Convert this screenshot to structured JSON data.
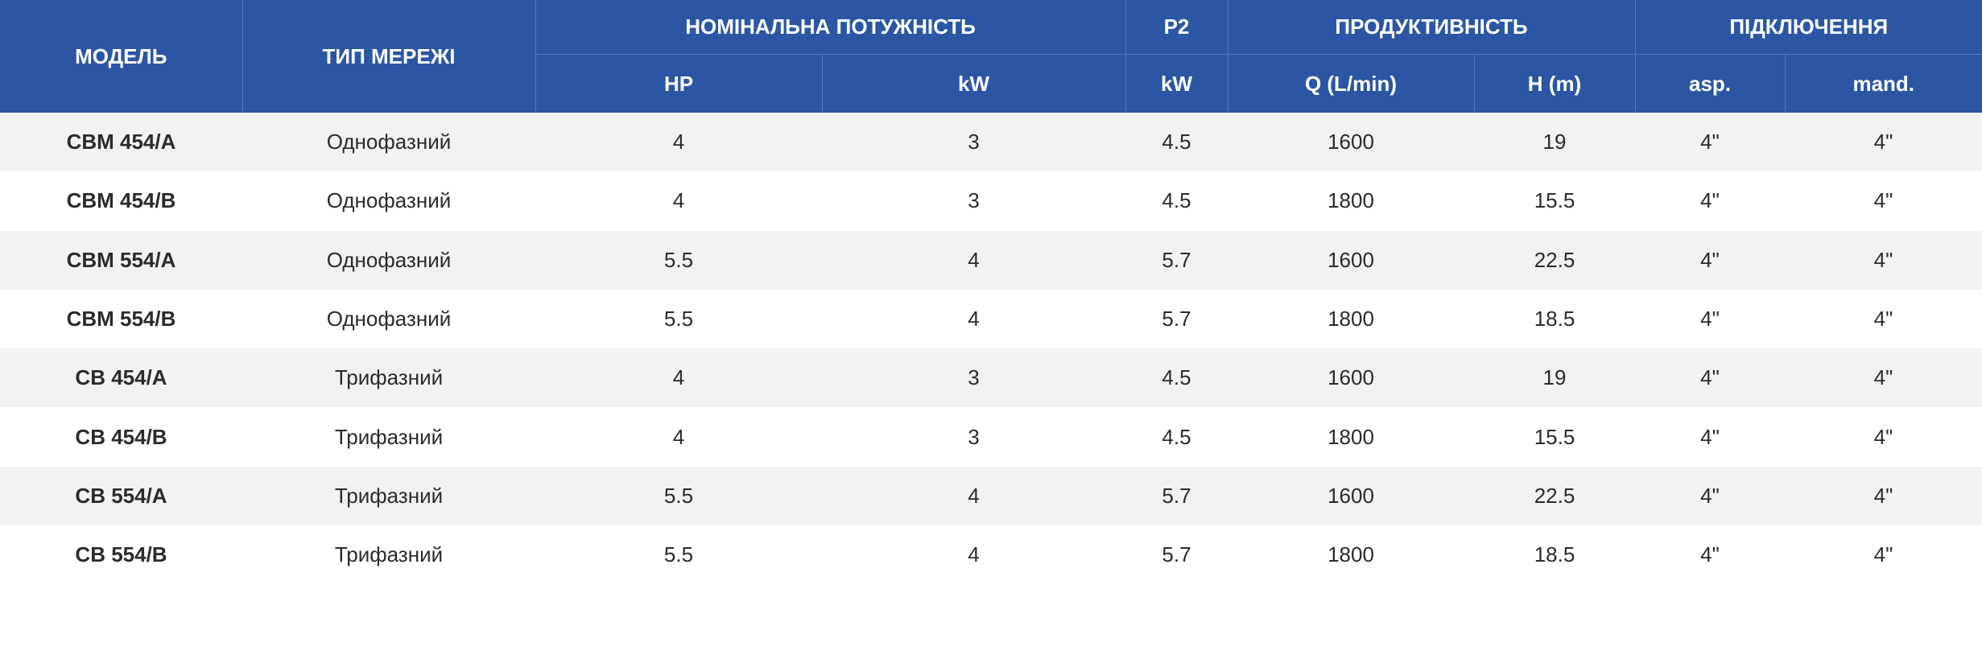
{
  "header": {
    "model": "МОДЕЛЬ",
    "network_type": "ТИП МЕРЕЖІ",
    "nominal_power": "НОМІНАЛЬНА ПОТУЖНІСТЬ",
    "p2": "P2",
    "productivity": "ПРОДУКТИВНІСТЬ",
    "connection": "ПІДКЛЮЧЕННЯ",
    "hp": "HP",
    "kw": "kW",
    "p2_kw": "kW",
    "q": "Q (L/min)",
    "h": "H (m)",
    "asp": "asp.",
    "mand": "mand."
  },
  "rows": [
    {
      "model": "CBM 454/A",
      "network": "Однофазний",
      "hp": "4",
      "kw": "3",
      "p2": "4.5",
      "q": "1600",
      "h": "19",
      "asp": "4\"",
      "mand": "4\""
    },
    {
      "model": "CBM 454/B",
      "network": "Однофазний",
      "hp": "4",
      "kw": "3",
      "p2": "4.5",
      "q": "1800",
      "h": "15.5",
      "asp": "4\"",
      "mand": "4\""
    },
    {
      "model": "CBM 554/A",
      "network": "Однофазний",
      "hp": "5.5",
      "kw": "4",
      "p2": "5.7",
      "q": "1600",
      "h": "22.5",
      "asp": "4\"",
      "mand": "4\""
    },
    {
      "model": "CBM 554/B",
      "network": "Однофазний",
      "hp": "5.5",
      "kw": "4",
      "p2": "5.7",
      "q": "1800",
      "h": "18.5",
      "asp": "4\"",
      "mand": "4\""
    },
    {
      "model": "CB 454/A",
      "network": "Трифазний",
      "hp": "4",
      "kw": "3",
      "p2": "4.5",
      "q": "1600",
      "h": "19",
      "asp": "4\"",
      "mand": "4\""
    },
    {
      "model": "CB 454/B",
      "network": "Трифазний",
      "hp": "4",
      "kw": "3",
      "p2": "4.5",
      "q": "1800",
      "h": "15.5",
      "asp": "4\"",
      "mand": "4\""
    },
    {
      "model": "CB 554/A",
      "network": "Трифазний",
      "hp": "5.5",
      "kw": "4",
      "p2": "5.7",
      "q": "1600",
      "h": "22.5",
      "asp": "4\"",
      "mand": "4\""
    },
    {
      "model": "CB 554/B",
      "network": "Трифазний",
      "hp": "5.5",
      "kw": "4",
      "p2": "5.7",
      "q": "1800",
      "h": "18.5",
      "asp": "4\"",
      "mand": "4\""
    }
  ]
}
